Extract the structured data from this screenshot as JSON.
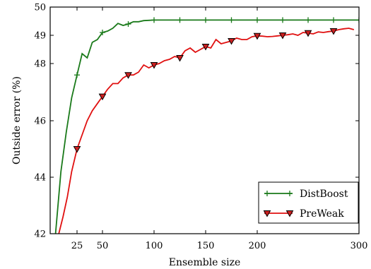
{
  "chart_data": {
    "type": "line",
    "xlabel": "Ensemble size",
    "ylabel": "Outside error (%)",
    "xlim": [
      0,
      300
    ],
    "ylim": [
      42,
      50
    ],
    "y_scale": "nonlinear (tick spacing shrinks toward top)",
    "x_scale": "nonlinear (tick spacing shrinks toward right)",
    "x_ticks": [
      25,
      50,
      100,
      150,
      200,
      300
    ],
    "y_ticks": [
      42,
      44,
      46,
      48,
      49,
      50
    ],
    "grid": false,
    "legend_position": "bottom-right",
    "series": [
      {
        "name": "DistBoost",
        "color": "#1a7a1a",
        "marker": "plus",
        "x": [
          5,
          10,
          15,
          20,
          25,
          30,
          35,
          40,
          45,
          50,
          55,
          60,
          65,
          70,
          75,
          80,
          85,
          90,
          95,
          100,
          110,
          120,
          130,
          140,
          150,
          160,
          170,
          180,
          190,
          200,
          210,
          220,
          230,
          240,
          250,
          260,
          270,
          280,
          290,
          300
        ],
        "y": [
          42.0,
          44.2,
          45.6,
          46.8,
          47.6,
          48.35,
          48.2,
          48.75,
          48.85,
          49.1,
          49.15,
          49.25,
          49.42,
          49.35,
          49.4,
          49.48,
          49.48,
          49.52,
          49.53,
          49.54,
          49.54,
          49.54,
          49.54,
          49.54,
          49.54,
          49.54,
          49.54,
          49.54,
          49.54,
          49.54,
          49.54,
          49.54,
          49.54,
          49.54,
          49.54,
          49.54,
          49.54,
          49.54,
          49.54,
          49.54
        ],
        "marker_x": [
          25,
          50,
          75,
          100,
          125,
          150,
          175,
          200,
          225,
          250,
          275,
          300
        ]
      },
      {
        "name": "PreWeak",
        "color": "#e01010",
        "marker": "triangle-down",
        "x": [
          8,
          12,
          16,
          20,
          25,
          30,
          35,
          40,
          45,
          50,
          55,
          60,
          65,
          70,
          75,
          80,
          85,
          90,
          95,
          100,
          105,
          110,
          115,
          120,
          125,
          130,
          135,
          140,
          145,
          150,
          155,
          160,
          165,
          170,
          175,
          180,
          185,
          190,
          195,
          200,
          205,
          210,
          215,
          220,
          225,
          230,
          235,
          240,
          245,
          250,
          255,
          260,
          265,
          270,
          275,
          280,
          285,
          290,
          295
        ],
        "y": [
          42.0,
          42.6,
          43.3,
          44.2,
          45.0,
          45.5,
          46.0,
          46.35,
          46.6,
          46.85,
          47.1,
          47.3,
          47.3,
          47.5,
          47.6,
          47.6,
          47.7,
          47.95,
          47.85,
          47.95,
          48.0,
          48.1,
          48.15,
          48.25,
          48.2,
          48.45,
          48.55,
          48.4,
          48.5,
          48.6,
          48.55,
          48.85,
          48.7,
          48.75,
          48.8,
          48.9,
          48.85,
          48.85,
          48.95,
          48.98,
          48.97,
          48.95,
          48.96,
          48.98,
          49.0,
          49.02,
          49.05,
          49.0,
          49.1,
          49.08,
          49.05,
          49.12,
          49.1,
          49.13,
          49.15,
          49.2,
          49.23,
          49.25,
          49.2
        ],
        "marker_x": [
          25,
          50,
          75,
          100,
          125,
          150,
          175,
          200,
          225,
          250,
          275
        ]
      }
    ]
  }
}
